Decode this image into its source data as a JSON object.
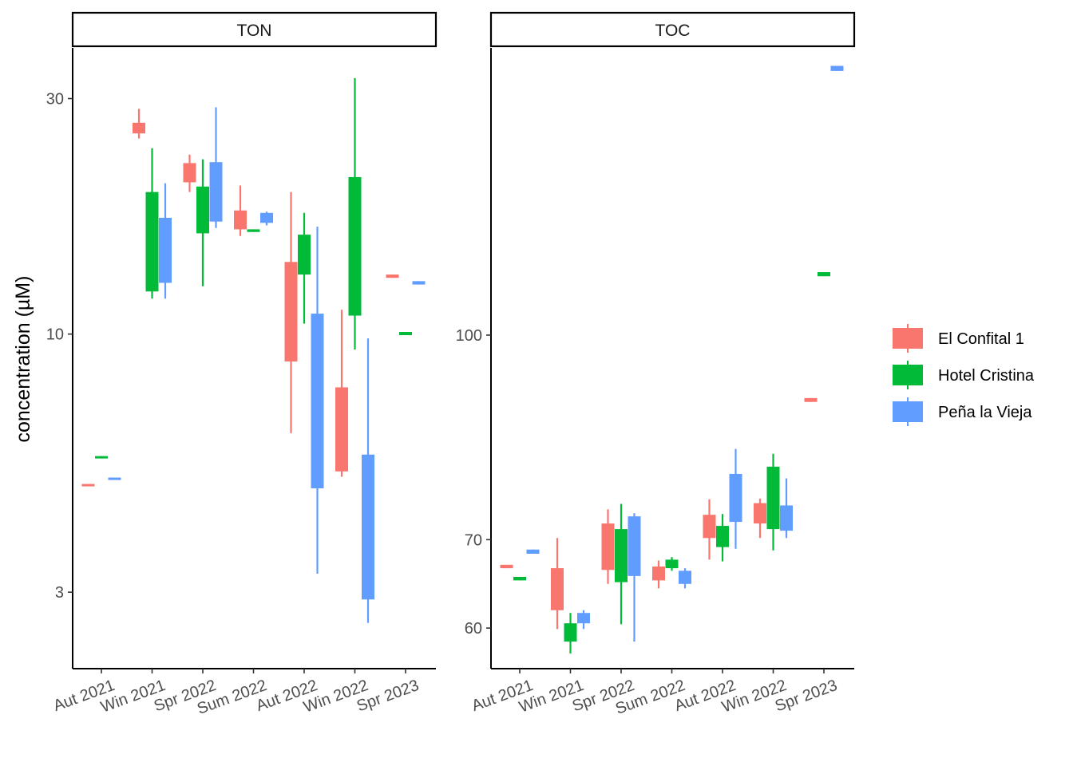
{
  "chart_data": {
    "type": "boxplot",
    "ylabel": "concentration (µM)",
    "y_scale": "log10",
    "x_categories": [
      "Aut 2021",
      "Win 2021",
      "Spr 2022",
      "Sum 2022",
      "Aut 2022",
      "Win 2022",
      "Spr 2023"
    ],
    "legend": {
      "placement": "right"
    },
    "series": [
      {
        "name": "El Confital 1",
        "color": "#F8766D"
      },
      {
        "name": "Hotel Cristina",
        "color": "#00BA38"
      },
      {
        "name": "Peña la Vieja",
        "color": "#619CFF"
      }
    ],
    "panels": [
      {
        "strip": "TON",
        "ylim": [
          2.1,
          38
        ],
        "ticks": [
          {
            "v": 3,
            "label": "3"
          },
          {
            "v": 10,
            "label": "10"
          },
          {
            "v": 30,
            "label": "30"
          }
        ],
        "boxes": [
          {
            "cat": 0,
            "series": 0,
            "low": 4.93,
            "q1": 4.93,
            "median": 4.95,
            "q3": 4.97,
            "high": 4.97
          },
          {
            "cat": 0,
            "series": 1,
            "low": 5.6,
            "q1": 5.6,
            "median": 5.63,
            "q3": 5.66,
            "high": 5.66
          },
          {
            "cat": 0,
            "series": 2,
            "low": 5.08,
            "q1": 5.08,
            "median": 5.1,
            "q3": 5.12,
            "high": 5.12
          },
          {
            "cat": 1,
            "series": 0,
            "low": 24.9,
            "q1": 25.5,
            "median": 26.2,
            "q3": 26.8,
            "high": 28.6
          },
          {
            "cat": 1,
            "series": 1,
            "low": 11.8,
            "q1": 12.2,
            "median": 15.5,
            "q3": 19.4,
            "high": 23.8
          },
          {
            "cat": 1,
            "series": 2,
            "low": 11.8,
            "q1": 12.7,
            "median": 15.4,
            "q3": 17.2,
            "high": 20.2
          },
          {
            "cat": 2,
            "series": 0,
            "low": 19.4,
            "q1": 20.3,
            "median": 21.4,
            "q3": 22.2,
            "high": 23.1
          },
          {
            "cat": 2,
            "series": 1,
            "low": 12.5,
            "q1": 16.0,
            "median": 18.1,
            "q3": 19.9,
            "high": 22.6
          },
          {
            "cat": 2,
            "series": 2,
            "low": 16.4,
            "q1": 16.9,
            "median": 19.0,
            "q3": 22.3,
            "high": 28.8
          },
          {
            "cat": 3,
            "series": 0,
            "low": 15.8,
            "q1": 16.3,
            "median": 17.1,
            "q3": 17.8,
            "high": 20.0
          },
          {
            "cat": 3,
            "series": 1,
            "low": 16.1,
            "q1": 16.1,
            "median": 16.2,
            "q3": 16.3,
            "high": 16.3
          },
          {
            "cat": 3,
            "series": 2,
            "low": 16.6,
            "q1": 16.8,
            "median": 17.2,
            "q3": 17.6,
            "high": 17.7
          },
          {
            "cat": 4,
            "series": 0,
            "low": 6.3,
            "q1": 8.8,
            "median": 10.9,
            "q3": 14.0,
            "high": 19.4
          },
          {
            "cat": 4,
            "series": 1,
            "low": 10.5,
            "q1": 13.2,
            "median": 14.3,
            "q3": 15.9,
            "high": 17.6
          },
          {
            "cat": 4,
            "series": 2,
            "low": 3.27,
            "q1": 4.87,
            "median": 7.6,
            "q3": 11.0,
            "high": 16.5
          },
          {
            "cat": 5,
            "series": 0,
            "low": 5.14,
            "q1": 5.27,
            "median": 6.0,
            "q3": 7.8,
            "high": 11.2
          },
          {
            "cat": 5,
            "series": 1,
            "low": 9.3,
            "q1": 10.9,
            "median": 15.5,
            "q3": 20.8,
            "high": 33.0
          },
          {
            "cat": 5,
            "series": 2,
            "low": 2.6,
            "q1": 2.9,
            "median": 4.0,
            "q3": 5.7,
            "high": 9.8
          },
          {
            "cat": 6,
            "series": 0,
            "low": 13.0,
            "q1": 13.0,
            "median": 13.1,
            "q3": 13.2,
            "high": 13.2
          },
          {
            "cat": 6,
            "series": 1,
            "low": 9.95,
            "q1": 9.95,
            "median": 10.0,
            "q3": 10.1,
            "high": 10.1
          },
          {
            "cat": 6,
            "series": 2,
            "low": 12.6,
            "q1": 12.6,
            "median": 12.7,
            "q3": 12.8,
            "high": 12.8
          }
        ]
      },
      {
        "strip": "TOC",
        "ylim": [
          55.9,
          165
        ],
        "ticks": [
          {
            "v": 60,
            "label": "60"
          },
          {
            "v": 70,
            "label": "70"
          },
          {
            "v": 100,
            "label": "100"
          }
        ],
        "boxes": [
          {
            "cat": 0,
            "series": 0,
            "low": 66.6,
            "q1": 66.6,
            "median": 66.8,
            "q3": 67.0,
            "high": 67.0
          },
          {
            "cat": 0,
            "series": 1,
            "low": 65.2,
            "q1": 65.2,
            "median": 65.4,
            "q3": 65.6,
            "high": 65.6
          },
          {
            "cat": 0,
            "series": 2,
            "low": 68.3,
            "q1": 68.3,
            "median": 68.5,
            "q3": 68.8,
            "high": 68.8
          },
          {
            "cat": 1,
            "series": 0,
            "low": 59.9,
            "q1": 61.9,
            "median": 64.0,
            "q3": 66.6,
            "high": 70.2
          },
          {
            "cat": 1,
            "series": 1,
            "low": 57.4,
            "q1": 58.6,
            "median": 59.7,
            "q3": 60.5,
            "high": 61.6
          },
          {
            "cat": 1,
            "series": 2,
            "low": 59.9,
            "q1": 60.5,
            "median": 61.0,
            "q3": 61.6,
            "high": 61.9
          },
          {
            "cat": 2,
            "series": 0,
            "low": 64.8,
            "q1": 66.4,
            "median": 69.5,
            "q3": 72.0,
            "high": 73.8
          },
          {
            "cat": 2,
            "series": 1,
            "low": 60.4,
            "q1": 65.0,
            "median": 68.0,
            "q3": 71.3,
            "high": 74.5
          },
          {
            "cat": 2,
            "series": 2,
            "low": 58.6,
            "q1": 65.7,
            "median": 69.0,
            "q3": 72.9,
            "high": 73.3
          },
          {
            "cat": 3,
            "series": 0,
            "low": 64.3,
            "q1": 65.2,
            "median": 66.0,
            "q3": 66.8,
            "high": 67.5
          },
          {
            "cat": 3,
            "series": 1,
            "low": 66.3,
            "q1": 66.6,
            "median": 67.0,
            "q3": 67.6,
            "high": 67.9
          },
          {
            "cat": 3,
            "series": 2,
            "low": 64.3,
            "q1": 64.8,
            "median": 65.5,
            "q3": 66.3,
            "high": 66.6
          },
          {
            "cat": 4,
            "series": 0,
            "low": 67.6,
            "q1": 70.2,
            "median": 71.7,
            "q3": 73.1,
            "high": 75.1
          },
          {
            "cat": 4,
            "series": 1,
            "low": 67.4,
            "q1": 69.1,
            "median": 70.5,
            "q3": 71.7,
            "high": 73.2
          },
          {
            "cat": 4,
            "series": 2,
            "low": 68.9,
            "q1": 72.2,
            "median": 75.0,
            "q3": 78.5,
            "high": 82.0
          },
          {
            "cat": 5,
            "series": 0,
            "low": 70.2,
            "q1": 72.0,
            "median": 73.0,
            "q3": 74.6,
            "high": 75.2
          },
          {
            "cat": 5,
            "series": 1,
            "low": 68.7,
            "q1": 71.3,
            "median": 75.0,
            "q3": 79.5,
            "high": 81.3
          },
          {
            "cat": 5,
            "series": 2,
            "low": 70.2,
            "q1": 71.1,
            "median": 72.5,
            "q3": 74.3,
            "high": 77.9
          },
          {
            "cat": 6,
            "series": 0,
            "low": 89.0,
            "q1": 89.0,
            "median": 89.3,
            "q3": 89.6,
            "high": 89.6
          },
          {
            "cat": 6,
            "series": 1,
            "low": 110.8,
            "q1": 110.8,
            "median": 111.2,
            "q3": 111.6,
            "high": 111.6
          },
          {
            "cat": 6,
            "series": 2,
            "low": 158.5,
            "q1": 158.5,
            "median": 159.2,
            "q3": 159.9,
            "high": 159.9
          }
        ]
      }
    ]
  }
}
